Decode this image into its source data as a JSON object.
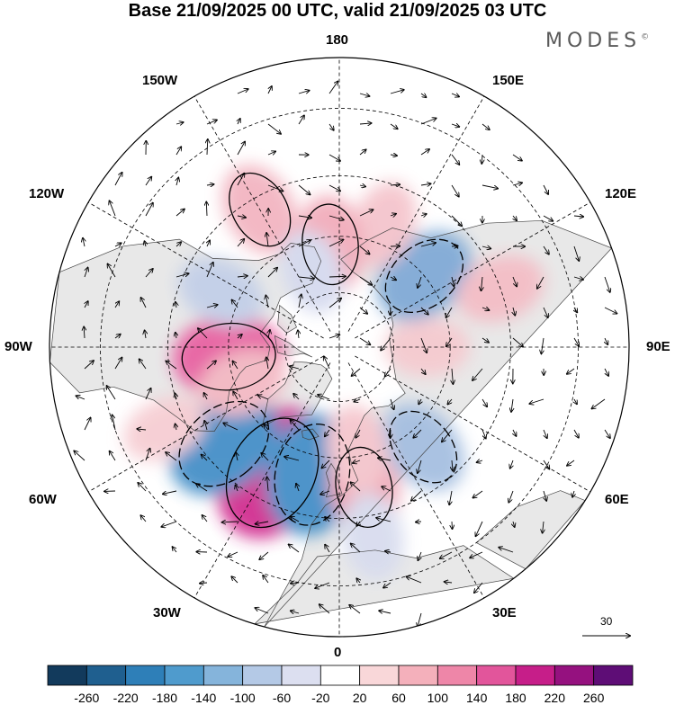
{
  "title": "Base 21/09/2025 00 UTC, valid 21/09/2025 03 UTC",
  "brand": {
    "name": "MODES",
    "mark": "©"
  },
  "longitude_labels": {
    "top": "180",
    "bottom": "0",
    "left": "90W",
    "right": "90E",
    "upper_left_outer": "150W",
    "upper_left_inner": "120W",
    "lower_left_outer": "60W",
    "lower_left_inner": "30W",
    "upper_right_outer": "150E",
    "upper_right_inner": "120E",
    "lower_right_outer": "60E",
    "lower_right_inner": "30E"
  },
  "wind_reference": {
    "label": "30"
  },
  "colorbar": {
    "ticks": [
      "-260",
      "-220",
      "-180",
      "-140",
      "-100",
      "-60",
      "-20",
      "20",
      "60",
      "100",
      "140",
      "180",
      "220",
      "260"
    ],
    "colors": [
      "#123a5c",
      "#1f5f8f",
      "#2e7fb8",
      "#4f9bcd",
      "#85b4db",
      "#b4c9e6",
      "#dcdff0",
      "#ffffff",
      "#f9d7d9",
      "#f4b0bb",
      "#ee86a8",
      "#e2559b",
      "#c61e89",
      "#95117f",
      "#5e0d76"
    ]
  },
  "map": {
    "projection": "north-polar-stereographic",
    "land_color": "#e8e8e8",
    "ocean_color": "#ffffff",
    "anomaly_centers": [
      {
        "lat": 52,
        "lon": -28,
        "value": 250,
        "color": "#d02a8e"
      },
      {
        "lat": 55,
        "lon": -12,
        "value": -190,
        "color": "#3f8cc6"
      },
      {
        "lat": 50,
        "lon": -50,
        "value": -180,
        "color": "#3f8cc6"
      },
      {
        "lat": 52,
        "lon": 10,
        "value": 90,
        "color": "#f0a5b5"
      },
      {
        "lat": 60,
        "lon": -85,
        "value": 150,
        "color": "#e85ea0"
      },
      {
        "lat": 62,
        "lon": -70,
        "value": 60,
        "color": "#f3b7c2"
      },
      {
        "lat": 55,
        "lon": 40,
        "value": -90,
        "color": "#a3bde0"
      },
      {
        "lat": 66,
        "lon": 90,
        "value": 40,
        "color": "#f6c9cf"
      },
      {
        "lat": 60,
        "lon": 130,
        "value": -120,
        "color": "#7ea9d6"
      },
      {
        "lat": 55,
        "lon": 160,
        "value": 50,
        "color": "#f4c3cb"
      },
      {
        "lat": 62,
        "lon": -175,
        "value": 90,
        "color": "#f1aab9"
      },
      {
        "lat": 48,
        "lon": -150,
        "value": 80,
        "color": "#f2b2bf"
      },
      {
        "lat": 55,
        "lon": -115,
        "value": -60,
        "color": "#c2cfe8"
      },
      {
        "lat": 40,
        "lon": -65,
        "value": 40,
        "color": "#f6ccd2"
      },
      {
        "lat": 40,
        "lon": 10,
        "value": -50,
        "color": "#d7dbee"
      },
      {
        "lat": 62,
        "lon": 10,
        "value": 50,
        "color": "#f5c5cc"
      },
      {
        "lat": 68,
        "lon": -160,
        "value": -40,
        "color": "#d4d9ee"
      },
      {
        "lat": 45,
        "lon": 110,
        "value": 60,
        "color": "#f4bcc5"
      }
    ]
  }
}
